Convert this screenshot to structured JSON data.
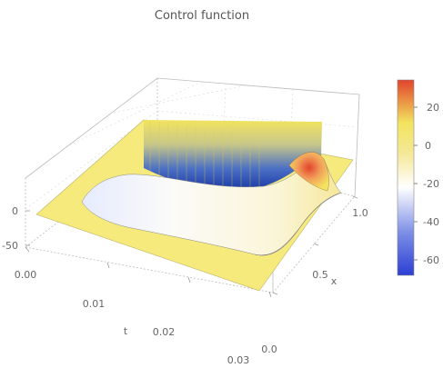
{
  "chart_data": {
    "type": "surface3d",
    "title": "Control function",
    "xlabel": "t",
    "ylabel": "x",
    "t_range": [
      0.0,
      0.03
    ],
    "x_range": [
      0.0,
      1.0
    ],
    "z_range": [
      -70,
      35
    ],
    "t_ticks": [
      "0.00",
      "0.01",
      "0.02",
      "0.03"
    ],
    "x_ticks": [
      "0.0",
      "0.5",
      "1.0"
    ],
    "z_ticks": [
      "-50",
      "0"
    ],
    "grid": true,
    "legend": "right",
    "colorbar": {
      "ticks": [
        "20",
        "0",
        "-20",
        "-40",
        "-60"
      ],
      "min": -70,
      "max": 35,
      "colors": [
        "#2c3fd4",
        "#7d8fe6",
        "#ffffff",
        "#f5e89a",
        "#f2e45e",
        "#e2432c"
      ]
    },
    "surface_summary": {
      "baseline_value": 0,
      "active_interval_t": [
        0.002,
        0.026
      ],
      "min_value": -65,
      "min_location": {
        "t": 0.008,
        "x": 1.0
      },
      "max_value": 33,
      "max_location": {
        "t": 0.026,
        "x": 0.95
      }
    }
  }
}
